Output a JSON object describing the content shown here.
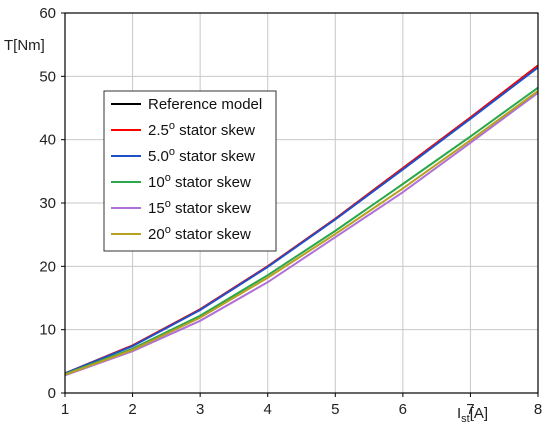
{
  "chart_data": {
    "type": "line",
    "ylabel": "T[Nm]",
    "xlabel_main": "I",
    "xlabel_sub": "st",
    "xlabel_unit": "[A]",
    "xlim": [
      1,
      8
    ],
    "ylim": [
      0,
      60
    ],
    "xticks": [
      1,
      2,
      3,
      4,
      5,
      6,
      7,
      8
    ],
    "yticks": [
      0,
      10,
      20,
      30,
      40,
      50,
      60
    ],
    "grid": true,
    "legend_placement": "upper-left",
    "x": [
      1,
      2,
      3,
      4,
      5,
      6,
      7,
      8
    ],
    "series": [
      {
        "name": "Reference model",
        "label_pre": "Reference model",
        "label_sup": "",
        "label_post": "",
        "color": "#000000",
        "values": [
          3.1,
          7.5,
          13.2,
          20.0,
          27.5,
          35.5,
          43.5,
          51.7
        ]
      },
      {
        "name": "2.5o stator skew",
        "label_pre": "2.5",
        "label_sup": "o",
        "label_post": " stator skew",
        "color": "#ff0000",
        "values": [
          3.1,
          7.5,
          13.2,
          20.0,
          27.5,
          35.5,
          43.5,
          51.7
        ]
      },
      {
        "name": "5.0o stator skew",
        "label_pre": "5.0",
        "label_sup": "o",
        "label_post": " stator skew",
        "color": "#2050c8",
        "values": [
          3.1,
          7.4,
          13.1,
          19.9,
          27.4,
          35.3,
          43.3,
          51.4
        ]
      },
      {
        "name": "10o stator skew",
        "label_pre": "10",
        "label_sup": "o",
        "label_post": " stator skew",
        "color": "#2aa84a",
        "values": [
          3.0,
          7.0,
          12.2,
          18.6,
          25.6,
          33.0,
          40.5,
          48.2
        ]
      },
      {
        "name": "15o stator skew",
        "label_pre": "15",
        "label_sup": "o",
        "label_post": " stator skew",
        "color": "#b070d8",
        "values": [
          2.8,
          6.6,
          11.4,
          17.5,
          24.6,
          31.7,
          39.5,
          47.4
        ]
      },
      {
        "name": "20o stator skew",
        "label_pre": "20",
        "label_sup": "o",
        "label_post": " stator skew",
        "color": "#b8a020",
        "values": [
          2.9,
          6.8,
          11.9,
          18.2,
          25.1,
          32.3,
          39.9,
          47.7
        ]
      }
    ]
  }
}
